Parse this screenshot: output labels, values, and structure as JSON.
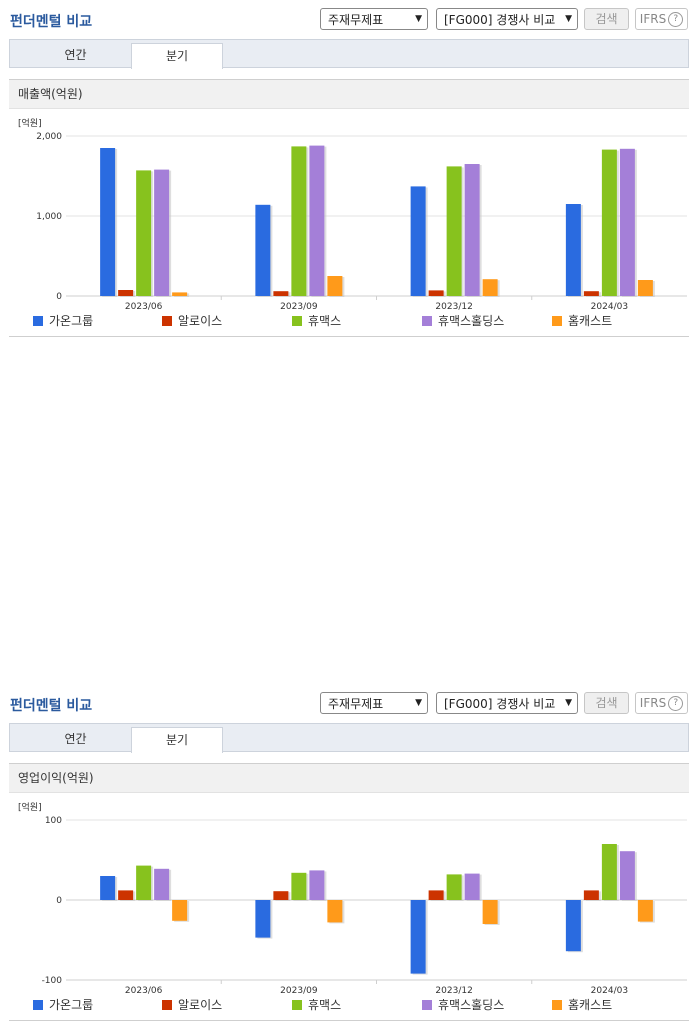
{
  "sections": [
    {
      "title": "펀더멘털 비교",
      "select1": "주재무제표",
      "select2": "[FG000] 경쟁사 비교",
      "search_button": "검색",
      "ifrs_label": "IFRS",
      "ifrs_help": "?",
      "tabs": [
        "연간",
        "분기"
      ],
      "active_tab": "분기",
      "header": "매출액(억원)",
      "legend": [
        "가온그룹",
        "알로이스",
        "휴맥스",
        "휴맥스홀딩스",
        "홈캐스트"
      ]
    },
    {
      "title": "펀더멘털 비교",
      "select1": "주재무제표",
      "select2": "[FG000] 경쟁사 비교",
      "search_button": "검색",
      "ifrs_label": "IFRS",
      "ifrs_help": "?",
      "tabs": [
        "연간",
        "분기"
      ],
      "active_tab": "분기",
      "header": "영업이익(억원)",
      "legend": [
        "가온그룹",
        "알로이스",
        "휴맥스",
        "휴맥스홀딩스",
        "홈캐스트"
      ]
    }
  ],
  "colors": {
    "가온그룹": "#2a6be0",
    "알로이스": "#cc3300",
    "휴맥스": "#87c21e",
    "휴맥스홀딩스": "#a47fd8",
    "홈캐스트": "#ff9a1a"
  },
  "chart_data": [
    {
      "type": "bar",
      "unit": "[억원]",
      "categories": [
        "2023/06",
        "2023/09",
        "2023/12",
        "2024/03"
      ],
      "yticks": [
        "2,000",
        "1,000",
        "0"
      ],
      "ylim": [
        0,
        2000
      ],
      "series": [
        {
          "name": "가온그룹",
          "values": [
            1850,
            1140,
            1370,
            1150
          ]
        },
        {
          "name": "알로이스",
          "values": [
            75,
            60,
            70,
            60
          ]
        },
        {
          "name": "휴맥스",
          "values": [
            1570,
            1870,
            1620,
            1830
          ]
        },
        {
          "name": "휴맥스홀딩스",
          "values": [
            1580,
            1880,
            1650,
            1840
          ]
        },
        {
          "name": "홈캐스트",
          "values": [
            45,
            250,
            210,
            200
          ]
        }
      ]
    },
    {
      "type": "bar",
      "unit": "[억원]",
      "categories": [
        "2023/06",
        "2023/09",
        "2023/12",
        "2024/03"
      ],
      "yticks": [
        "100",
        "0",
        "-100"
      ],
      "ylim": [
        -100,
        100
      ],
      "series": [
        {
          "name": "가온그룹",
          "values": [
            30,
            -47,
            -92,
            -64
          ]
        },
        {
          "name": "알로이스",
          "values": [
            12,
            11,
            12,
            12
          ]
        },
        {
          "name": "휴맥스",
          "values": [
            43,
            34,
            32,
            70
          ]
        },
        {
          "name": "휴맥스홀딩스",
          "values": [
            39,
            37,
            33,
            61
          ]
        },
        {
          "name": "홈캐스트",
          "values": [
            -26,
            -28,
            -30,
            -27
          ]
        }
      ]
    }
  ]
}
